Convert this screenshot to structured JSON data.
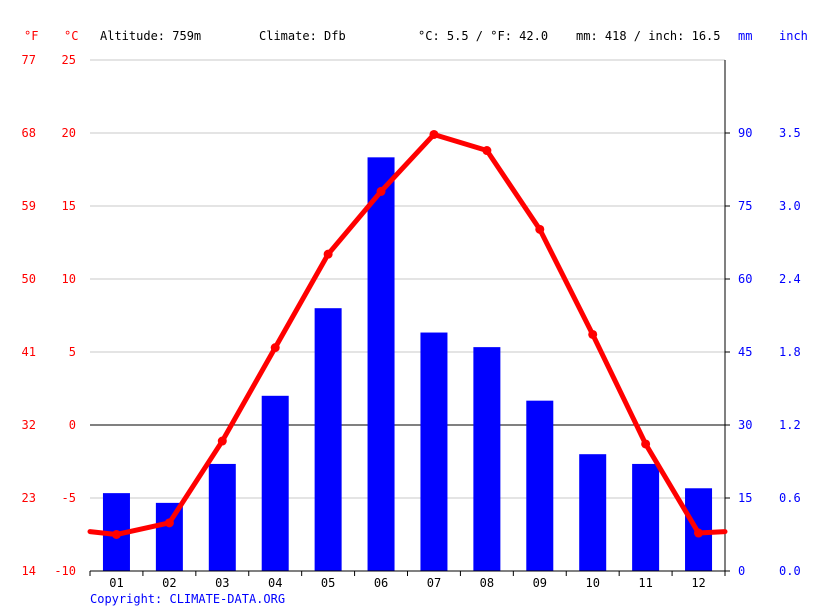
{
  "header": {
    "unit_f": "°F",
    "unit_c": "°C",
    "altitude": "Altitude: 759m",
    "climate": "Climate: Dfb",
    "temp_avg": "°C: 5.5 / °F: 42.0",
    "precip_total": "mm: 418 / inch: 16.5",
    "unit_mm": "mm",
    "unit_inch": "inch"
  },
  "copyright": "Copyright: CLIMATE-DATA.ORG",
  "colors": {
    "temperature": "#ff0000",
    "precipitation": "#0000ff",
    "grid": "#c8c8c8",
    "zero_line": "#000000"
  },
  "chart_data": {
    "type": "bar+line",
    "categories": [
      "01",
      "02",
      "03",
      "04",
      "05",
      "06",
      "07",
      "08",
      "09",
      "10",
      "11",
      "12"
    ],
    "series": [
      {
        "name": "mm",
        "type": "bar",
        "axis": "right",
        "values": [
          16,
          14,
          22,
          36,
          54,
          85,
          49,
          46,
          35,
          24,
          22,
          17
        ]
      },
      {
        "name": "°C",
        "type": "line",
        "axis": "left",
        "values": [
          -7.5,
          -6.7,
          -1.1,
          5.3,
          11.7,
          16.0,
          19.9,
          18.8,
          13.4,
          6.2,
          -1.3,
          -7.4
        ],
        "edge_start": -7.3,
        "edge_end": -7.3
      }
    ],
    "axes": {
      "celsius": {
        "ylim": [
          -10,
          25
        ],
        "ticks": [
          "25",
          "20",
          "15",
          "10",
          "5",
          "0",
          "-5",
          "-10"
        ]
      },
      "fahrenheit": {
        "ticks": [
          "77",
          "68",
          "59",
          "50",
          "41",
          "32",
          "23",
          "14"
        ]
      },
      "mm": {
        "ylim": [
          0,
          105
        ],
        "ticks": [
          "90",
          "75",
          "60",
          "45",
          "30",
          "15",
          "0"
        ]
      },
      "inch": {
        "ticks": [
          "3.5",
          "3.0",
          "2.4",
          "1.8",
          "1.2",
          "0.6",
          "0.0"
        ]
      }
    },
    "grid": true
  }
}
